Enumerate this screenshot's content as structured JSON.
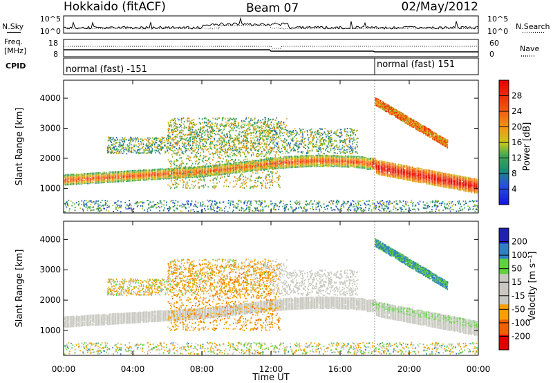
{
  "header": {
    "station": "Hokkaido (fitACF)",
    "beam": "Beam 07",
    "date": "02/May/2012"
  },
  "top_panels": {
    "nsky_label": "N.Sky",
    "nsearch_label": "N.Search",
    "nsky_ticks": [
      "10^5",
      "10^0"
    ],
    "nsearch_ticks": [
      "10^5",
      "10^0"
    ],
    "freq_label": "Freq.",
    "freq_unit": "[MHz]",
    "freq_ticks": [
      "18",
      "8"
    ],
    "nave_label": "Nave",
    "nave_ticks": [
      "60",
      "0"
    ],
    "cpid_label": "CPID",
    "cpid_segments": [
      "normal (fast) -151",
      "normal (fast) 151"
    ]
  },
  "chart_data": [
    {
      "type": "heatmap",
      "title": "",
      "xlabel": "Time UT",
      "ylabel": "Slant Range [km]",
      "xlim": [
        "00:00",
        "24:00"
      ],
      "x_ticks": [
        "00:00",
        "04:00",
        "08:00",
        "12:00",
        "16:00",
        "20:00",
        "00:00"
      ],
      "ylim": [
        180,
        4600
      ],
      "y_ticks": [
        1000,
        2000,
        3000,
        4000
      ],
      "colorbar": {
        "label": "Power [dB]",
        "ticks": [
          4,
          8,
          12,
          16,
          20,
          24,
          28
        ],
        "range": [
          0,
          32
        ]
      },
      "features": [
        {
          "name": "main echo band",
          "t_start": 0,
          "t_end": 24,
          "range_km": [
            1000,
            2000
          ],
          "power_db": [
            12,
            28
          ]
        },
        {
          "name": "upper scatter",
          "t_start": 3,
          "t_end": 17,
          "range_km": [
            2200,
            3300
          ],
          "power_db": [
            4,
            20
          ]
        },
        {
          "name": "late high-range echoes",
          "t_start": 18,
          "t_end": 22,
          "range_km": [
            2500,
            3900
          ],
          "power_db": [
            8,
            28
          ]
        },
        {
          "name": "near-range clutter",
          "t_start": 0,
          "t_end": 24,
          "range_km": [
            200,
            600
          ],
          "power_db": [
            4,
            16
          ]
        }
      ]
    },
    {
      "type": "heatmap",
      "title": "",
      "xlabel": "Time UT",
      "ylabel": "Slant Range [km]",
      "xlim": [
        "00:00",
        "24:00"
      ],
      "x_ticks": [
        "00:00",
        "04:00",
        "08:00",
        "12:00",
        "16:00",
        "20:00",
        "00:00"
      ],
      "ylim": [
        180,
        4600
      ],
      "y_ticks": [
        1000,
        2000,
        3000,
        4000
      ],
      "colorbar": {
        "label": "Velocity [m s⁻¹]",
        "ticks": [
          200,
          100,
          50,
          15,
          -15,
          -50,
          -100,
          -200
        ]
      },
      "features": [
        {
          "name": "ground scatter band",
          "t_start": 0,
          "t_end": 24,
          "range_km": [
            900,
            2300
          ],
          "velocity": [
            -15,
            15
          ]
        },
        {
          "name": "approaching flows",
          "t_start": 6,
          "t_end": 12,
          "range_km": [
            1000,
            3000
          ],
          "velocity": [
            -100,
            -15
          ]
        },
        {
          "name": "receding flows",
          "t_start": 18,
          "t_end": 22,
          "range_km": [
            2500,
            3900
          ],
          "velocity": [
            15,
            100
          ]
        }
      ]
    }
  ]
}
